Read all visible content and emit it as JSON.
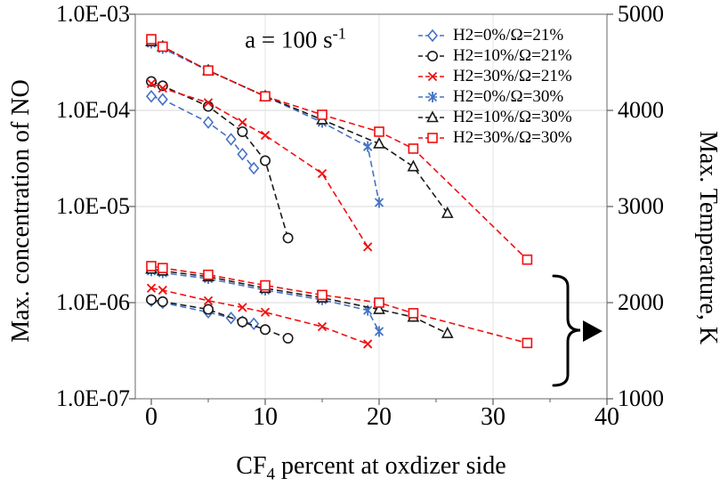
{
  "chart_data": {
    "type": "line",
    "annotation": {
      "text": "a = 100 s",
      "sup": "-1"
    },
    "x_axis": {
      "label_prefix": "CF",
      "label_sub": "4",
      "label_rest": " percent at oxdizer side",
      "ticks": [
        "0",
        "10",
        "20",
        "30",
        "40"
      ],
      "tick_values": [
        0,
        10,
        20,
        30,
        40
      ],
      "minor_tick_values": [
        5,
        15,
        25,
        35
      ],
      "range": [
        0,
        40
      ]
    },
    "left_axis": {
      "label": "Max. concentration of NO",
      "scale": "log",
      "ticks": [
        "1.0E-03",
        "1.0E-04",
        "1.0E-05",
        "1.0E-06",
        "1.0E-07"
      ],
      "tick_values": [
        0.001,
        0.0001,
        1e-05,
        1e-06,
        1e-07
      ],
      "range": [
        1e-07,
        0.001
      ]
    },
    "right_axis": {
      "label": "Max. Temperature, K",
      "scale": "linear",
      "ticks": [
        "5000",
        "4000",
        "3000",
        "2000",
        "1000"
      ],
      "tick_values": [
        5000,
        4000,
        3000,
        2000,
        1000
      ],
      "range": [
        1000,
        5000
      ]
    },
    "legend_position": "top-right-inside",
    "grid": true,
    "series": [
      {
        "label": "H2=0%/Ω=21%",
        "color": "#4472c4",
        "marker": "diamond",
        "x": [
          0,
          1,
          5,
          7,
          8,
          9
        ],
        "no_concentration": [
          0.00014,
          0.00013,
          7.5e-05,
          5e-05,
          3.5e-05,
          2.5e-05
        ],
        "temperature_K": [
          2020,
          2000,
          1900,
          1840,
          1800,
          1780
        ]
      },
      {
        "label": "H2=10%/Ω=21%",
        "color": "#1a1a1a",
        "marker": "circle",
        "x": [
          0,
          1,
          5,
          8,
          10,
          12
        ],
        "no_concentration": [
          0.0002,
          0.00018,
          0.00011,
          6e-05,
          3e-05,
          4.7e-06
        ],
        "temperature_K": [
          2030,
          2010,
          1930,
          1800,
          1720,
          1630
        ]
      },
      {
        "label": "H2=30%/Ω=21%",
        "color": "#f20d0d",
        "marker": "x",
        "x": [
          0,
          1,
          5,
          8,
          10,
          15,
          19
        ],
        "no_concentration": [
          0.00019,
          0.00017,
          0.00012,
          7.5e-05,
          5.5e-05,
          2.2e-05,
          3.8e-06
        ],
        "temperature_K": [
          2150,
          2130,
          2020,
          1950,
          1900,
          1750,
          1570
        ]
      },
      {
        "label": "H2=0%/Ω=30%",
        "color": "#4472c4",
        "marker": "star",
        "x": [
          0,
          1,
          5,
          10,
          15,
          19,
          20
        ],
        "no_concentration": [
          0.0005,
          0.00044,
          0.00026,
          0.00014,
          7.5e-05,
          4.2e-05,
          1.1e-05
        ],
        "temperature_K": [
          2330,
          2310,
          2250,
          2130,
          2030,
          1920,
          1700
        ]
      },
      {
        "label": "H2=10%/Ω=30%",
        "color": "#1a1a1a",
        "marker": "triangle",
        "x": [
          0,
          1,
          5,
          10,
          15,
          20,
          23,
          26
        ],
        "no_concentration": [
          0.00052,
          0.00046,
          0.00026,
          0.00014,
          8e-05,
          4.5e-05,
          2.6e-05,
          8.5e-06
        ],
        "temperature_K": [
          2350,
          2330,
          2270,
          2150,
          2050,
          1930,
          1850,
          1680
        ]
      },
      {
        "label": "H2=30%/Ω=30%",
        "color": "#f20d0d",
        "marker": "square",
        "x": [
          0,
          1,
          5,
          10,
          15,
          20,
          23,
          33
        ],
        "no_concentration": [
          0.00055,
          0.00046,
          0.00026,
          0.00014,
          9e-05,
          6e-05,
          4e-05,
          2.8e-06
        ],
        "temperature_K": [
          2380,
          2360,
          2290,
          2180,
          2080,
          2000,
          1890,
          1580
        ]
      }
    ]
  }
}
